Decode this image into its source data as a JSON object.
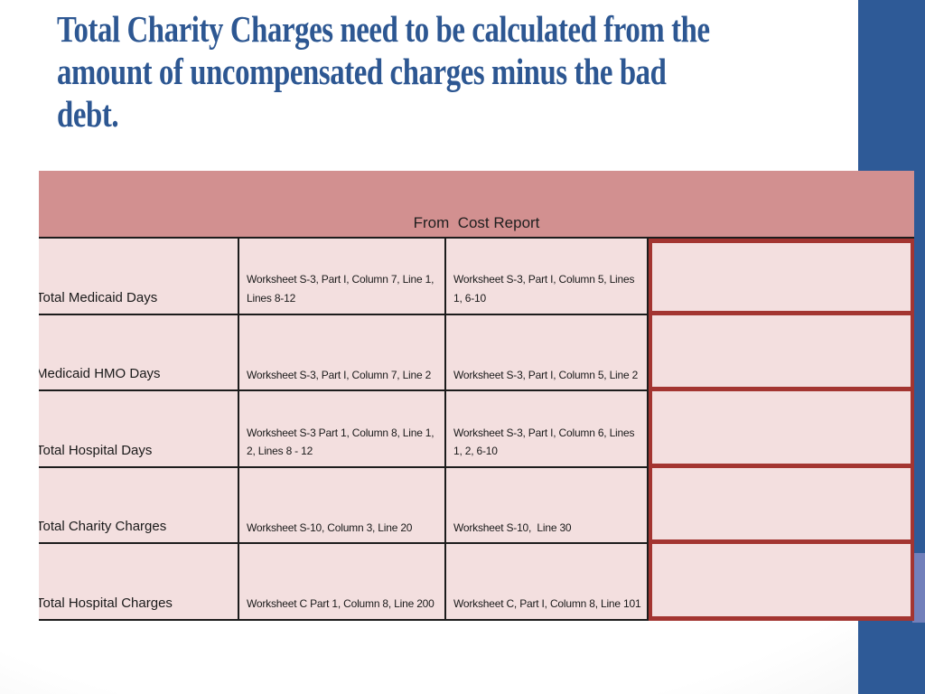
{
  "slide": {
    "title": "Total Charity Charges need to be calculated from the\namount of uncompensated charges minus the bad\ndebt."
  },
  "table": {
    "header": "From  Cost Report",
    "rows": [
      {
        "label": "Total Medicaid Days",
        "ref1": "Worksheet S-3, Part I, Column 7, Line 1, Lines 8-12",
        "ref2": "Worksheet S-3, Part I, Column 5, Lines 1, 6-10",
        "value": ""
      },
      {
        "label": "Medicaid HMO Days",
        "ref1": "Worksheet S-3, Part I, Column 7, Line 2",
        "ref2": "Worksheet S-3, Part I, Column 5, Line 2",
        "value": ""
      },
      {
        "label": "Total Hospital Days",
        "ref1": "Worksheet S-3 Part 1, Column 8, Line 1, 2, Lines 8 - 12",
        "ref2": "Worksheet S-3, Part I, Column 6, Lines 1, 2, 6-10",
        "value": ""
      },
      {
        "label": "Total Charity Charges",
        "ref1": "Worksheet S-10, Column 3, Line 20",
        "ref2": "Worksheet S-10,  Line 30",
        "value": ""
      },
      {
        "label": "Total Hospital Charges",
        "ref1": "Worksheet C Part 1, Column 8, Line 200",
        "ref2": "Worksheet C, Part I, Column 8, Line 101",
        "value": ""
      }
    ]
  },
  "colors": {
    "title": "#2d5792",
    "bar": "#2e5a97",
    "bar-light": "#7280bb",
    "header-pink": "#d29090",
    "cell-pink": "#f3dfdf",
    "red": "#a33531",
    "grid": "#1c1c1c",
    "bg-center": "#ffffff",
    "bg-edge": "#d9d9d9"
  }
}
